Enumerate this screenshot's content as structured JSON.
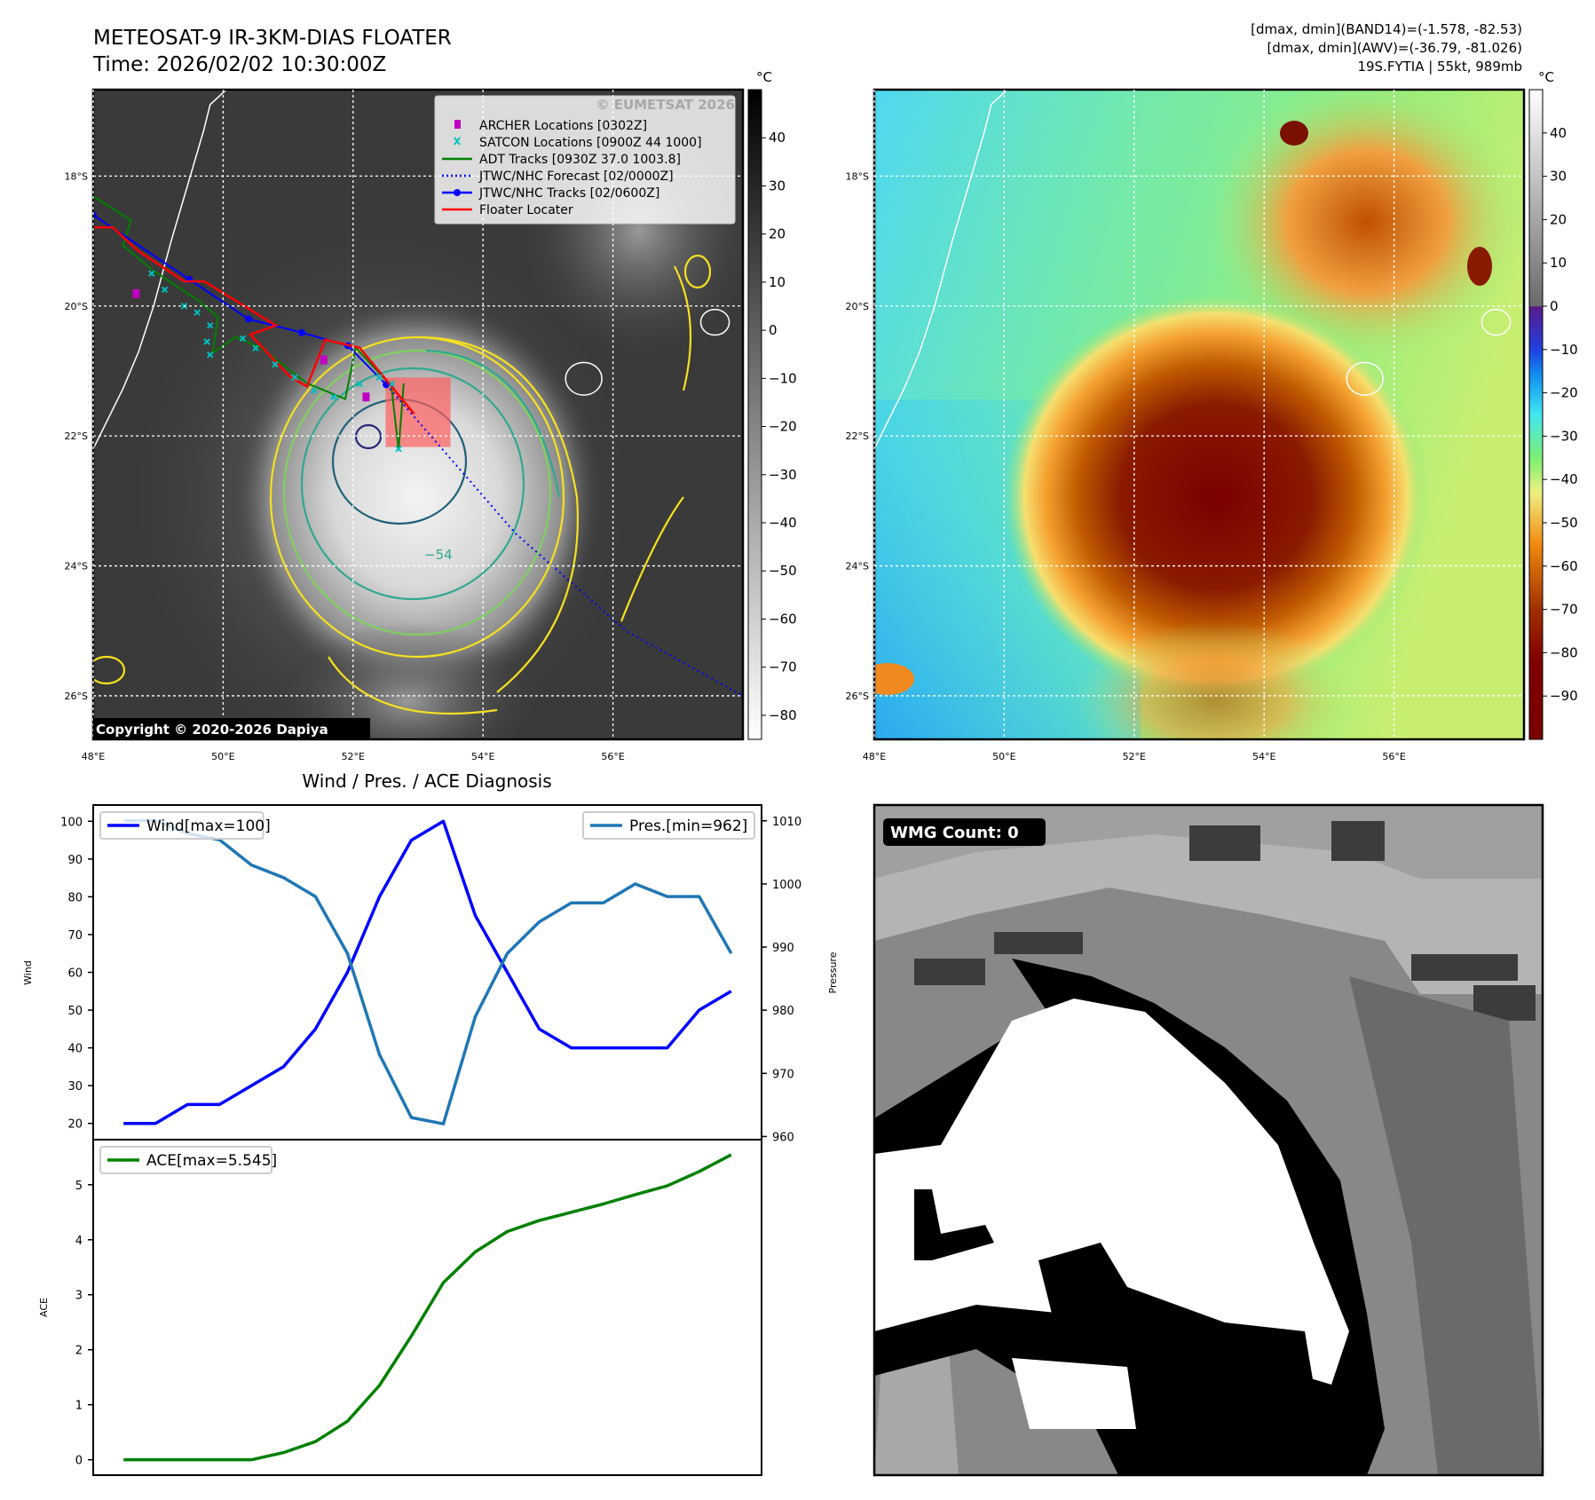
{
  "header": {
    "title": "METEOSAT-9 IR-3KM-DIAS FLOATER",
    "time": "Time: 2026/02/02 10:30:00Z",
    "info_band14": "[dmax, dmin](BAND14)=(-1.578, -82.53)",
    "info_awv": "[dmax, dmin](AWV)=(-36.79, -81.026)",
    "storm_info": "19S.FYTIA | 55kt, 989mb"
  },
  "map": {
    "lon_ticks": [
      "48°E",
      "50°E",
      "52°E",
      "54°E",
      "56°E"
    ],
    "lat_ticks": [
      "18°S",
      "20°S",
      "22°S",
      "24°S",
      "26°S"
    ],
    "lon_values": [
      48,
      50,
      52,
      54,
      56
    ],
    "lat_values": [
      18,
      20,
      22,
      24,
      26
    ],
    "extent": {
      "lon": [
        48,
        58
      ],
      "lat": [
        16.67,
        26.67
      ]
    },
    "copyright": "Copyright © 2020-2026 Dapiya",
    "watermark": "© EUMETSAT 2026",
    "contour_label": "−54",
    "legend": [
      {
        "label": "ARCHER Locations [0302Z]",
        "color": "#c000c0",
        "kind": "square"
      },
      {
        "label": "SATCON Locations [0900Z 44 1000]",
        "color": "#00c0c0",
        "kind": "x"
      },
      {
        "label": "ADT Tracks [0930Z 37.0 1003.8]",
        "color": "#008000",
        "kind": "line"
      },
      {
        "label": "JTWC/NHC Forecast [02/0000Z]",
        "color": "#0000ff",
        "kind": "dotted"
      },
      {
        "label": "JTWC/NHC Tracks [02/0600Z]",
        "color": "#0000ff",
        "kind": "line-dot"
      },
      {
        "label": "Floater Locater",
        "color": "#ff0000",
        "kind": "line"
      }
    ],
    "tracks": {
      "jtwc": [
        [
          48.0,
          18.6
        ],
        [
          49.48,
          19.59
        ],
        [
          50.39,
          20.2
        ],
        [
          51.21,
          20.41
        ],
        [
          51.92,
          20.61
        ],
        [
          52.51,
          21.21
        ]
      ],
      "forecast": [
        [
          52.51,
          21.21
        ],
        [
          54.5,
          23.5
        ],
        [
          56.2,
          25.0
        ],
        [
          58.0,
          26.0
        ]
      ],
      "floater": [
        [
          48.0,
          18.79
        ],
        [
          48.3,
          18.79
        ],
        [
          48.69,
          19.15
        ],
        [
          49.4,
          19.62
        ],
        [
          49.71,
          19.62
        ],
        [
          50.81,
          20.3
        ],
        [
          50.42,
          20.44
        ],
        [
          51.02,
          21.08
        ],
        [
          51.29,
          21.24
        ],
        [
          51.57,
          20.52
        ],
        [
          52.1,
          20.64
        ],
        [
          52.75,
          21.43
        ],
        [
          52.94,
          21.66
        ]
      ],
      "adt": [
        [
          48,
          18.31
        ],
        [
          48.58,
          18.68
        ],
        [
          48.46,
          19.07
        ],
        [
          48.93,
          19.46
        ],
        [
          49.64,
          19.93
        ],
        [
          49.92,
          20.17
        ],
        [
          49.84,
          20.72
        ],
        [
          50.19,
          20.48
        ],
        [
          50.58,
          20.64
        ],
        [
          51.29,
          21.19
        ],
        [
          51.88,
          21.43
        ],
        [
          52.04,
          20.64
        ],
        [
          52.59,
          21.24
        ],
        [
          52.7,
          22.21
        ],
        [
          52.78,
          21.19
        ]
      ],
      "satcon": [
        [
          48.9,
          19.5
        ],
        [
          49.1,
          19.75
        ],
        [
          49.4,
          20.0
        ],
        [
          49.6,
          20.1
        ],
        [
          49.8,
          20.3
        ],
        [
          49.75,
          20.55
        ],
        [
          49.8,
          20.75
        ],
        [
          50.3,
          20.5
        ],
        [
          50.5,
          20.65
        ],
        [
          50.8,
          20.9
        ],
        [
          51.1,
          21.1
        ],
        [
          51.4,
          21.3
        ],
        [
          51.7,
          21.4
        ],
        [
          52.1,
          21.2
        ],
        [
          52.4,
          21.1
        ],
        [
          52.6,
          21.2
        ],
        [
          52.7,
          22.2
        ]
      ],
      "archer": [
        [
          48.66,
          19.81
        ],
        [
          51.55,
          20.83
        ],
        [
          52.2,
          21.4
        ]
      ],
      "floater_box": {
        "lon": [
          52.5,
          53.5
        ],
        "lat": [
          21.1,
          22.17
        ]
      }
    },
    "coast": [
      [
        50.05,
        16.67
      ],
      [
        49.8,
        16.9
      ],
      [
        49.7,
        17.3
      ],
      [
        49.48,
        18.05
      ],
      [
        49.2,
        19.0
      ],
      [
        48.93,
        20.0
      ],
      [
        48.7,
        20.7
      ],
      [
        48.46,
        21.27
      ],
      [
        48.0,
        22.2
      ]
    ],
    "islands": [
      {
        "lon": 55.55,
        "lat": 21.12,
        "r": 0.28
      },
      {
        "lon": 57.57,
        "lat": 20.25,
        "r": 0.22
      }
    ]
  },
  "ir_colorbar": {
    "unit": "°C",
    "ticks": [
      40,
      30,
      20,
      10,
      0,
      -10,
      -20,
      -30,
      -40,
      -50,
      -60,
      -70,
      -80
    ],
    "range": [
      50,
      -85
    ]
  },
  "awv_colorbar": {
    "unit": "°C",
    "ticks": [
      40,
      30,
      20,
      10,
      0,
      -10,
      -20,
      -30,
      -40,
      -50,
      -60,
      -70,
      -80,
      -90
    ],
    "range": [
      50,
      -100
    ]
  },
  "wmg": {
    "label": "WMG Count: 0"
  },
  "chart_data": [
    {
      "type": "line",
      "title": "Wind / Pres. / ACE Diagnosis",
      "x": [
        0,
        1,
        2,
        3,
        4,
        5,
        6,
        7,
        8,
        9,
        10,
        11,
        12,
        13,
        14,
        15,
        16,
        17,
        18,
        19
      ],
      "xlim": [
        -0.95,
        19.95
      ],
      "series": [
        {
          "name": "Wind[max=100]",
          "axis": "left",
          "color": "#0000ff",
          "values": [
            20,
            20,
            25,
            25,
            30,
            35,
            45,
            60,
            80,
            95,
            100,
            75,
            60,
            45,
            40,
            40,
            40,
            40,
            50,
            55
          ]
        },
        {
          "name": "Pres.[min=962]",
          "axis": "right",
          "color": "#1f77b4",
          "values": [
            1010,
            1010,
            1008,
            1007,
            1003,
            1001,
            998,
            989,
            973,
            963,
            962,
            979,
            989,
            994,
            997,
            997,
            1000,
            998,
            998,
            989
          ]
        }
      ],
      "ylabel": "Wind",
      "ylabel_right": "Pressure",
      "ylim": [
        15.7,
        104.3
      ],
      "ylim_right": [
        959.5,
        1012.5
      ],
      "yticks": [
        20,
        30,
        40,
        50,
        60,
        70,
        80,
        90,
        100
      ],
      "yticks_right": [
        960,
        970,
        980,
        990,
        1000,
        1010
      ],
      "legend_left": "top-left",
      "legend_right": "top-right"
    },
    {
      "type": "line",
      "x": [
        0,
        1,
        2,
        3,
        4,
        5,
        6,
        7,
        8,
        9,
        10,
        11,
        12,
        13,
        14,
        15,
        16,
        17,
        18,
        19
      ],
      "xlim": [
        -0.95,
        19.95
      ],
      "series": [
        {
          "name": "ACE[max=5.545]",
          "color": "#008000",
          "values": [
            0,
            0,
            0,
            0,
            0,
            0.13,
            0.33,
            0.7,
            1.35,
            2.25,
            3.22,
            3.78,
            4.15,
            4.35,
            4.5,
            4.65,
            4.82,
            4.98,
            5.24,
            5.545
          ]
        }
      ],
      "ylabel": "ACE",
      "ylim": [
        -0.28,
        5.82
      ],
      "yticks": [
        0,
        1,
        2,
        3,
        4,
        5
      ],
      "legend": "top-left"
    }
  ]
}
